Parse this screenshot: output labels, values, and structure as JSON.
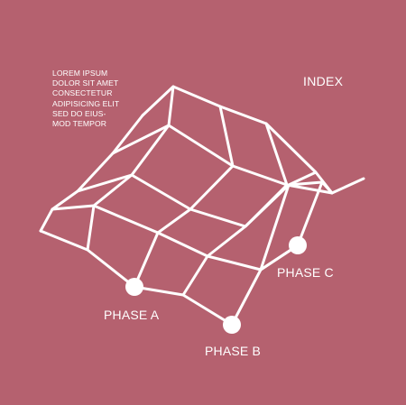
{
  "title": "INDEX",
  "intro_lines": [
    "LOREM IPSUM",
    "DOLOR SIT AMET",
    "CONSECTETUR",
    "ADIPISICING ELIT",
    "SED DO EIUS-",
    "MOD TEMPOR"
  ],
  "phases": [
    {
      "label": "PHASE A"
    },
    {
      "label": "PHASE B"
    },
    {
      "label": "PHASE C"
    }
  ],
  "colors": {
    "background": "#b5616f",
    "foreground": "#ffffff"
  }
}
